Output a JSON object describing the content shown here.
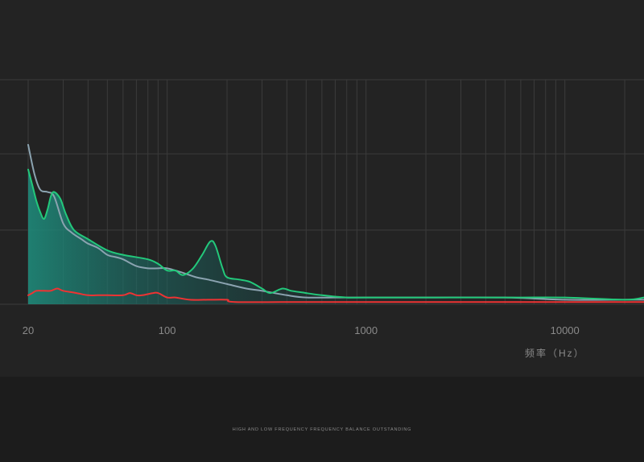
{
  "chart_data": {
    "type": "line",
    "xscale": "log",
    "xlim": [
      20,
      25000
    ],
    "ylim": [
      0,
      100
    ],
    "xlabel": "频率（Hz）",
    "x_ticks": [
      20,
      100,
      1000,
      10000
    ],
    "grid": true,
    "series": [
      {
        "color": "#8ba3b0",
        "area": false,
        "points": [
          [
            20,
            71
          ],
          [
            21.5,
            58
          ],
          [
            23,
            51
          ],
          [
            25,
            50
          ],
          [
            27,
            48
          ],
          [
            30,
            36
          ],
          [
            33,
            32
          ],
          [
            37,
            29
          ],
          [
            40,
            27
          ],
          [
            45,
            25
          ],
          [
            50,
            22
          ],
          [
            55,
            21
          ],
          [
            60,
            20
          ],
          [
            70,
            17
          ],
          [
            80,
            16
          ],
          [
            90,
            16
          ],
          [
            100,
            16
          ],
          [
            120,
            14
          ],
          [
            140,
            12
          ],
          [
            160,
            11
          ],
          [
            200,
            9
          ],
          [
            250,
            7
          ],
          [
            300,
            6
          ],
          [
            400,
            4
          ],
          [
            500,
            3
          ],
          [
            700,
            3
          ],
          [
            1000,
            3
          ],
          [
            2000,
            3
          ],
          [
            5000,
            3
          ],
          [
            10000,
            2
          ],
          [
            20000,
            2
          ],
          [
            25000,
            2
          ]
        ]
      },
      {
        "color": "#23c97b",
        "area": true,
        "points": [
          [
            20,
            60
          ],
          [
            21,
            53
          ],
          [
            22,
            46
          ],
          [
            23,
            41
          ],
          [
            24,
            38
          ],
          [
            25,
            42
          ],
          [
            26,
            48
          ],
          [
            27,
            50
          ],
          [
            29,
            47
          ],
          [
            31,
            40
          ],
          [
            34,
            33
          ],
          [
            40,
            29
          ],
          [
            50,
            24
          ],
          [
            60,
            22
          ],
          [
            80,
            20
          ],
          [
            90,
            18
          ],
          [
            100,
            15
          ],
          [
            110,
            15
          ],
          [
            120,
            13
          ],
          [
            135,
            16
          ],
          [
            150,
            22
          ],
          [
            165,
            28
          ],
          [
            175,
            26
          ],
          [
            190,
            16
          ],
          [
            200,
            12
          ],
          [
            230,
            11
          ],
          [
            260,
            10
          ],
          [
            300,
            7
          ],
          [
            330,
            5
          ],
          [
            380,
            7
          ],
          [
            420,
            6
          ],
          [
            500,
            5
          ],
          [
            600,
            4
          ],
          [
            800,
            3
          ],
          [
            1000,
            3
          ],
          [
            5000,
            3
          ],
          [
            10000,
            3
          ],
          [
            20000,
            2
          ],
          [
            25000,
            3
          ]
        ]
      },
      {
        "color": "#ee3333",
        "area": false,
        "points": [
          [
            20,
            4
          ],
          [
            21,
            5
          ],
          [
            22,
            6
          ],
          [
            24,
            6
          ],
          [
            26,
            6
          ],
          [
            28,
            7
          ],
          [
            30,
            6
          ],
          [
            35,
            5
          ],
          [
            40,
            4
          ],
          [
            45,
            4
          ],
          [
            50,
            4
          ],
          [
            60,
            4
          ],
          [
            65,
            5
          ],
          [
            70,
            4
          ],
          [
            75,
            4
          ],
          [
            85,
            5
          ],
          [
            90,
            5
          ],
          [
            100,
            3
          ],
          [
            110,
            3
          ],
          [
            130,
            2
          ],
          [
            160,
            2
          ],
          [
            200,
            2
          ],
          [
            220,
            1
          ],
          [
            500,
            1
          ],
          [
            1000,
            1
          ],
          [
            5000,
            1
          ],
          [
            10000,
            1
          ],
          [
            25000,
            1
          ]
        ]
      }
    ]
  },
  "footer_text": "HIGH AND LOW FREQUENCY FREQUENCY BALANCE OUTSTANDING"
}
